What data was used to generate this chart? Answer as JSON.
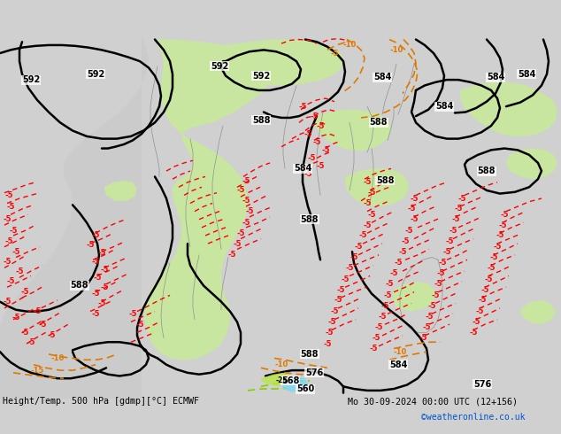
{
  "title_left": "Height/Temp. 500 hPa [gdmp][°C] ECMWF",
  "title_right": "Mo 30-09-2024 00:00 UTC (12+156)",
  "watermark": "©weatheronline.co.uk",
  "fig_width": 6.34,
  "fig_height": 4.9,
  "dpi": 100,
  "bg_ocean": "#d0d0d0",
  "bg_land": "#c8c8c8",
  "green_fill": "#c8e6a0",
  "gray_land": "#c8c8c8"
}
